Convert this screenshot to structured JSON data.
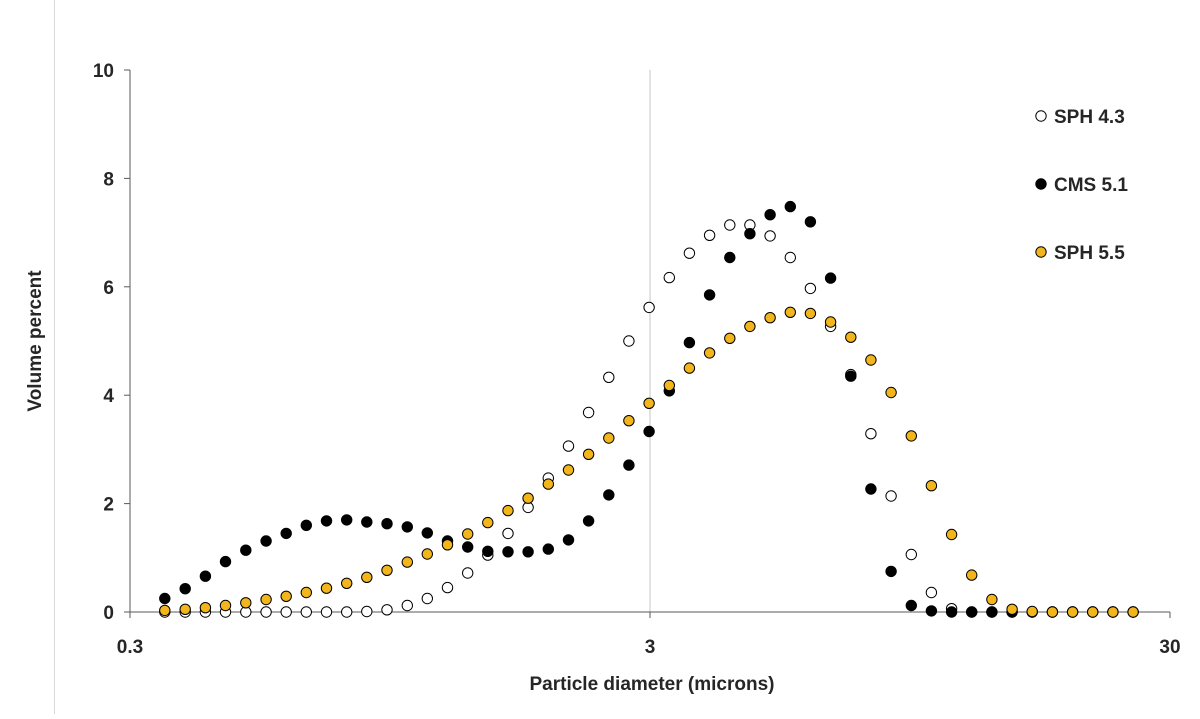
{
  "chart_data": {
    "type": "scatter",
    "title": "",
    "xlabel": "Particle diameter (microns)",
    "ylabel": "Volume percent",
    "x_scale": "log",
    "xlim": [
      0.3,
      30
    ],
    "ylim": [
      0,
      10
    ],
    "x_ticks": [
      "0.3",
      "3",
      "30"
    ],
    "y_ticks": [
      "0",
      "2",
      "4",
      "6",
      "8",
      "10"
    ],
    "gridlines": {
      "vertical_at": [
        3
      ]
    },
    "legend": {
      "position": "top-right"
    },
    "x": [
      0.35,
      0.383,
      0.419,
      0.458,
      0.501,
      0.548,
      0.599,
      0.655,
      0.716,
      0.783,
      0.856,
      0.936,
      1.024,
      1.119,
      1.224,
      1.338,
      1.463,
      1.6,
      1.749,
      1.912,
      2.091,
      2.286,
      2.5,
      2.733,
      2.988,
      3.267,
      3.572,
      3.906,
      4.271,
      4.67,
      5.106,
      5.583,
      6.104,
      6.674,
      7.298,
      7.98,
      8.725,
      9.54,
      10.431,
      11.405,
      12.47,
      13.635,
      14.909,
      16.301,
      17.824,
      19.489,
      21.309,
      23.3,
      25.476
    ],
    "series": [
      {
        "name": "SPH 4.3",
        "marker": "hollow",
        "color": "#ffffff",
        "edge": "#000000",
        "values": [
          0,
          0,
          0,
          0,
          0,
          0,
          0,
          0,
          0,
          0,
          0.01,
          0.04,
          0.12,
          0.25,
          0.45,
          0.72,
          1.05,
          1.45,
          1.93,
          2.47,
          3.06,
          3.68,
          4.33,
          5.0,
          5.62,
          6.17,
          6.62,
          6.95,
          7.14,
          7.14,
          6.94,
          6.54,
          5.97,
          5.27,
          4.38,
          3.29,
          2.14,
          1.06,
          0.36,
          0.06,
          0,
          0,
          0,
          0,
          0,
          0,
          0,
          0,
          0
        ]
      },
      {
        "name": "CMS 5.1",
        "marker": "filled",
        "color": "#000000",
        "edge": "#000000",
        "values": [
          0.25,
          0.43,
          0.66,
          0.93,
          1.14,
          1.31,
          1.45,
          1.6,
          1.68,
          1.7,
          1.66,
          1.63,
          1.57,
          1.46,
          1.31,
          1.2,
          1.12,
          1.11,
          1.11,
          1.16,
          1.33,
          1.68,
          2.16,
          2.71,
          3.33,
          4.08,
          4.97,
          5.85,
          6.54,
          6.98,
          7.33,
          7.48,
          7.2,
          6.16,
          4.35,
          2.27,
          0.75,
          0.12,
          0.02,
          0,
          0,
          0,
          0,
          0,
          0,
          0,
          0,
          0,
          0
        ]
      },
      {
        "name": "SPH 5.5",
        "marker": "filled",
        "color": "#f2b51c",
        "edge": "#000000",
        "values": [
          0.03,
          0.05,
          0.08,
          0.12,
          0.17,
          0.23,
          0.29,
          0.36,
          0.44,
          0.53,
          0.64,
          0.77,
          0.92,
          1.07,
          1.24,
          1.44,
          1.65,
          1.87,
          2.1,
          2.36,
          2.62,
          2.91,
          3.21,
          3.53,
          3.85,
          4.18,
          4.5,
          4.78,
          5.05,
          5.27,
          5.43,
          5.53,
          5.51,
          5.35,
          5.07,
          4.65,
          4.05,
          3.25,
          2.33,
          1.43,
          0.68,
          0.23,
          0.05,
          0.01,
          0,
          0,
          0,
          0,
          0
        ]
      }
    ]
  }
}
